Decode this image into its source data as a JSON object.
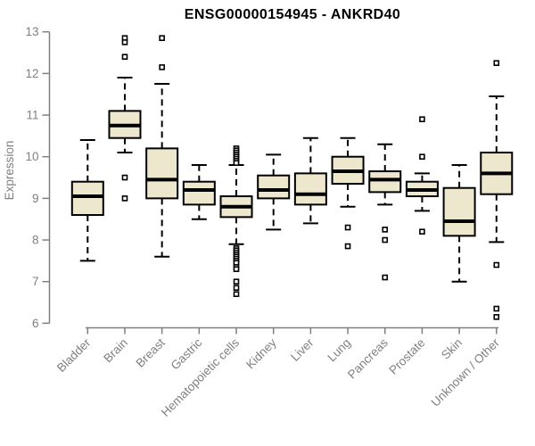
{
  "chart_data": {
    "type": "boxplot",
    "title": "ENSG00000154945 - ANKRD40",
    "xlabel": "",
    "ylabel": "Expression",
    "ylim": [
      6,
      13
    ],
    "yticks": [
      6,
      7,
      8,
      9,
      10,
      11,
      12,
      13
    ],
    "grid": false,
    "legend": "none",
    "colors": {
      "box_fill": "#EDE7CD",
      "box_border": "#000000",
      "median": "#000000",
      "whisker": "#000000",
      "axis": "#808080",
      "tick_label": "#808080",
      "title": "#000000",
      "background": "#FFFFFF"
    },
    "categories": [
      "Bladder",
      "Brain",
      "Breast",
      "Gastric",
      "Hematopoietic cells",
      "Kidney",
      "Liver",
      "Lung",
      "Pancreas",
      "Prostate",
      "Skin",
      "Unknown / Other"
    ],
    "series": [
      {
        "name": "Bladder",
        "whisker_low": 7.5,
        "q1": 8.6,
        "median": 9.05,
        "q3": 9.4,
        "whisker_high": 10.4,
        "outliers": []
      },
      {
        "name": "Brain",
        "whisker_low": 10.1,
        "q1": 10.45,
        "median": 10.75,
        "q3": 11.1,
        "whisker_high": 11.9,
        "outliers": [
          12.85,
          12.75,
          12.4,
          9.5,
          9.0
        ]
      },
      {
        "name": "Breast",
        "whisker_low": 7.6,
        "q1": 9.0,
        "median": 9.45,
        "q3": 10.2,
        "whisker_high": 11.75,
        "outliers": [
          12.85,
          12.15
        ]
      },
      {
        "name": "Gastric",
        "whisker_low": 8.5,
        "q1": 8.85,
        "median": 9.2,
        "q3": 9.4,
        "whisker_high": 9.8,
        "outliers": []
      },
      {
        "name": "Hematopoietic cells",
        "whisker_low": 7.9,
        "q1": 8.55,
        "median": 8.8,
        "q3": 9.05,
        "whisker_high": 9.8,
        "outliers": [
          10.2,
          10.15,
          10.1,
          10.05,
          10.0,
          9.95,
          9.9,
          9.85,
          7.8,
          7.75,
          7.7,
          7.65,
          7.6,
          7.55,
          7.5,
          7.45,
          7.35,
          7.3,
          7.0,
          6.85,
          6.7
        ]
      },
      {
        "name": "Kidney",
        "whisker_low": 8.25,
        "q1": 9.0,
        "median": 9.2,
        "q3": 9.55,
        "whisker_high": 10.05,
        "outliers": []
      },
      {
        "name": "Liver",
        "whisker_low": 8.4,
        "q1": 8.85,
        "median": 9.1,
        "q3": 9.6,
        "whisker_high": 10.45,
        "outliers": []
      },
      {
        "name": "Lung",
        "whisker_low": 8.8,
        "q1": 9.35,
        "median": 9.65,
        "q3": 10.0,
        "whisker_high": 10.45,
        "outliers": [
          8.3,
          7.85
        ]
      },
      {
        "name": "Pancreas",
        "whisker_low": 8.85,
        "q1": 9.15,
        "median": 9.45,
        "q3": 9.65,
        "whisker_high": 10.3,
        "outliers": [
          8.25,
          8.0,
          7.1
        ]
      },
      {
        "name": "Prostate",
        "whisker_low": 8.7,
        "q1": 9.05,
        "median": 9.2,
        "q3": 9.4,
        "whisker_high": 9.6,
        "outliers": [
          10.9,
          10.0,
          8.2
        ]
      },
      {
        "name": "Skin",
        "whisker_low": 7.0,
        "q1": 8.1,
        "median": 8.45,
        "q3": 9.25,
        "whisker_high": 9.8,
        "outliers": []
      },
      {
        "name": "Unknown / Other",
        "whisker_low": 7.95,
        "q1": 9.1,
        "median": 9.6,
        "q3": 10.1,
        "whisker_high": 11.45,
        "outliers": [
          12.25,
          7.4,
          6.35,
          6.15
        ]
      }
    ]
  }
}
